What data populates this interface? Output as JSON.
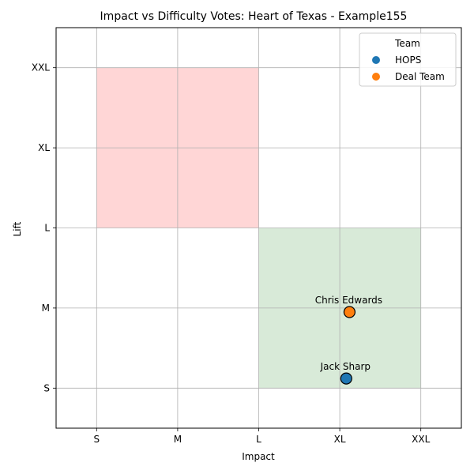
{
  "chart_data": {
    "type": "scatter",
    "title": "Impact vs Difficulty Votes: Heart of Texas - Example155",
    "xlabel": "Impact",
    "ylabel": "Lift",
    "x_categories": [
      "S",
      "M",
      "L",
      "XL",
      "XXL"
    ],
    "y_categories": [
      "S",
      "M",
      "L",
      "XL",
      "XXL"
    ],
    "xlim": [
      -0.5,
      4.5
    ],
    "ylim": [
      -0.5,
      4.5
    ],
    "grid": true,
    "regions": [
      {
        "x": [
          0,
          2
        ],
        "y": [
          2,
          4
        ],
        "color": "#ffd6d6"
      },
      {
        "x": [
          2,
          4
        ],
        "y": [
          0,
          2
        ],
        "color": "#d8ead8"
      }
    ],
    "legend": {
      "title": "Team",
      "position": "top-right",
      "entries": [
        {
          "label": "HOPS",
          "color": "#1f77b4"
        },
        {
          "label": "Deal Team",
          "color": "#ff7f0e"
        }
      ]
    },
    "points": [
      {
        "label": "Chris Edwards",
        "team": "Deal Team",
        "x": 3.12,
        "y": 0.95,
        "color": "#ff7f0e"
      },
      {
        "label": "Jack Sharp",
        "team": "HOPS",
        "x": 3.08,
        "y": 0.12,
        "color": "#1f77b4"
      }
    ]
  }
}
